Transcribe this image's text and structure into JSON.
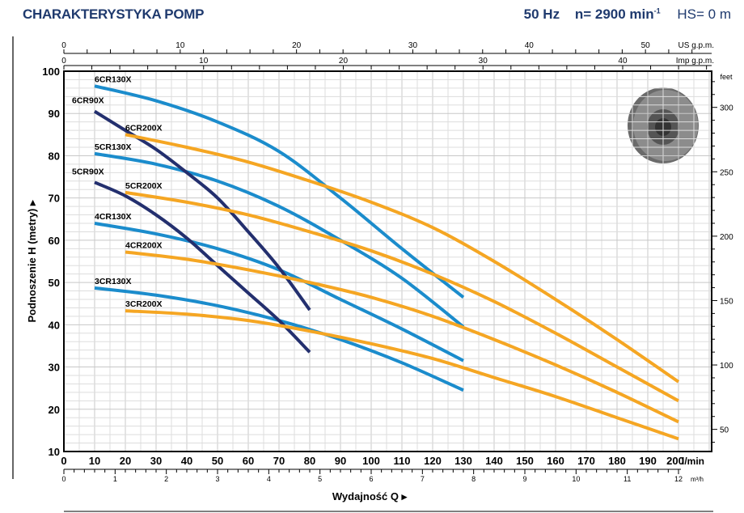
{
  "header": {
    "title": "CHARAKTERYSTYKA POMP",
    "freq": "50 Hz",
    "speed": "n= 2900 min",
    "speed_sup": "-1",
    "hs": "HS= 0 m"
  },
  "colors": {
    "blue": "#1b8ccc",
    "navy": "#232f6e",
    "orange": "#f5a623",
    "title": "#1f3a6e"
  },
  "chart_data": {
    "type": "line",
    "xlabel": "Wydajność Q ▸",
    "ylabel": "Podnoszenie H  (metry) ▸",
    "x_unit": "l/min",
    "xlim": [
      0,
      211
    ],
    "ylim": [
      10,
      100
    ],
    "x_ticks": [
      0,
      10,
      20,
      30,
      40,
      50,
      60,
      70,
      80,
      90,
      100,
      110,
      120,
      130,
      140,
      150,
      160,
      170,
      180,
      190,
      200
    ],
    "y_ticks": [
      10,
      20,
      30,
      40,
      50,
      60,
      70,
      80,
      90,
      100
    ],
    "secondary_axes": {
      "m3h": {
        "unit": "m³/h",
        "ticks": [
          0,
          1,
          2,
          3,
          4,
          5,
          6,
          7,
          8,
          9,
          10,
          11,
          12
        ]
      },
      "us_gpm": {
        "unit": "US g.p.m.",
        "ticks": [
          0,
          10,
          20,
          30,
          40,
          50
        ]
      },
      "imp_gpm": {
        "unit": "Imp g.p.m.",
        "ticks": [
          0,
          10,
          20,
          30,
          40
        ]
      },
      "feet": {
        "unit": "feet",
        "ticks": [
          50,
          100,
          150,
          200,
          250,
          300
        ]
      }
    },
    "grid": true,
    "series": [
      {
        "name": "6CR130X",
        "color": "blue",
        "x": [
          10,
          30,
          50,
          70,
          90,
          110,
          130
        ],
        "y": [
          96.5,
          93,
          88,
          81,
          70,
          58,
          46.5
        ]
      },
      {
        "name": "5CR130X",
        "color": "blue",
        "x": [
          10,
          30,
          50,
          70,
          90,
          110,
          130
        ],
        "y": [
          80.5,
          78,
          74,
          68,
          60,
          51,
          39.5
        ]
      },
      {
        "name": "4CR130X",
        "color": "blue",
        "x": [
          10,
          30,
          50,
          70,
          90,
          110,
          130
        ],
        "y": [
          64,
          61.5,
          58,
          53,
          46,
          39,
          31.5
        ]
      },
      {
        "name": "3CR130X",
        "color": "blue",
        "x": [
          10,
          30,
          50,
          70,
          90,
          110,
          130
        ],
        "y": [
          48.7,
          47,
          44.5,
          41,
          36.5,
          31,
          24.5
        ]
      },
      {
        "name": "6CR90X",
        "color": "navy",
        "x": [
          10,
          20,
          30,
          40,
          50,
          60,
          70,
          80
        ],
        "y": [
          90.5,
          86,
          81.5,
          76,
          70,
          62,
          53.5,
          43.5
        ]
      },
      {
        "name": "5CR90X",
        "color": "navy",
        "x": [
          10,
          20,
          30,
          40,
          50,
          60,
          70,
          80
        ],
        "y": [
          73.7,
          70.5,
          66,
          60.5,
          54,
          47.5,
          41,
          33.5
        ]
      },
      {
        "name": "6CR200X",
        "color": "orange",
        "x": [
          20,
          40,
          60,
          80,
          100,
          120,
          140,
          160,
          180,
          200
        ],
        "y": [
          85,
          82,
          78.5,
          74,
          69,
          63,
          55,
          46,
          36.5,
          26.5
        ]
      },
      {
        "name": "5CR200X",
        "color": "orange",
        "x": [
          20,
          40,
          60,
          80,
          100,
          120,
          140,
          160,
          180,
          200
        ],
        "y": [
          71.3,
          69,
          66,
          62,
          57.5,
          52,
          45.5,
          38,
          30,
          22
        ]
      },
      {
        "name": "4CR200X",
        "color": "orange",
        "x": [
          20,
          40,
          60,
          80,
          100,
          120,
          140,
          160,
          180,
          200
        ],
        "y": [
          57.2,
          55.5,
          53,
          50,
          46.5,
          42,
          36.5,
          30.5,
          24,
          17
        ]
      },
      {
        "name": "3CR200X",
        "color": "orange",
        "x": [
          20,
          40,
          60,
          80,
          100,
          120,
          140,
          160,
          180,
          200
        ],
        "y": [
          43.3,
          42.5,
          41,
          38.5,
          35.5,
          32,
          27.5,
          23,
          18,
          13
        ]
      }
    ]
  }
}
